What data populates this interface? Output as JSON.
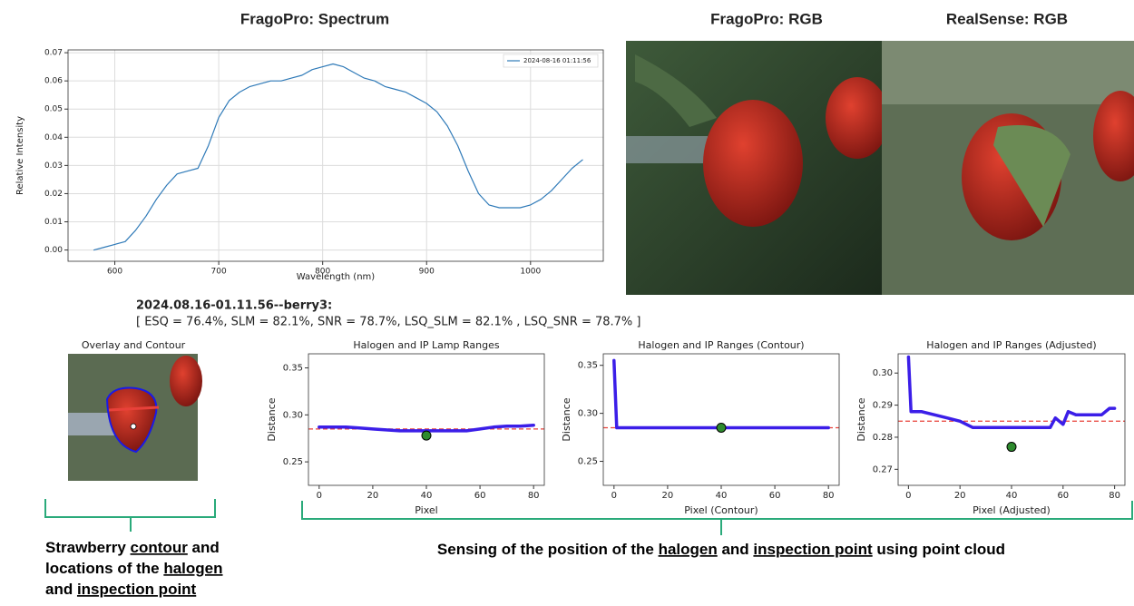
{
  "headers": [
    "FragoPro: Spectrum",
    "FragoPro: RGB",
    "RealSense: RGB"
  ],
  "record": {
    "id": "2024.08.16-01.11.56--berry3:",
    "metrics": "[ ESQ = 76.4%, SLM = 82.1%, SNR = 78.7%, LSQ_SLM = 82.1% , LSQ_SNR = 78.7% ]"
  },
  "overlay_title": "Overlay and Contour",
  "captions": {
    "left": [
      [
        "Strawberry ",
        "contour",
        " and"
      ],
      [
        "locations of the ",
        "halogen"
      ],
      [
        "and ",
        "inspection point"
      ]
    ],
    "right": [
      [
        "Sensing of the position of the ",
        "halogen",
        " and ",
        "inspection point",
        " using point cloud"
      ]
    ]
  },
  "chart_data": [
    {
      "type": "line",
      "xlabel": "Wavelength (nm)",
      "ylabel": "Relative Intensity",
      "xlim": [
        555,
        1070
      ],
      "ylim": [
        -0.004,
        0.071
      ],
      "xticks": [
        600,
        700,
        800,
        900,
        1000
      ],
      "yticks": [
        {
          "value": 0,
          "label": "0.00"
        },
        0.01,
        0.02,
        0.03,
        0.04,
        0.05,
        0.06,
        0.07
      ],
      "grid": true,
      "legend": "upper right",
      "series": [
        {
          "name": "2024-08-16 01:11:56",
          "color": "#2f7ab8",
          "x": [
            580,
            590,
            600,
            610,
            620,
            630,
            640,
            650,
            660,
            670,
            680,
            690,
            700,
            710,
            720,
            730,
            740,
            750,
            760,
            770,
            780,
            790,
            800,
            810,
            820,
            830,
            840,
            850,
            860,
            870,
            880,
            890,
            900,
            910,
            920,
            930,
            940,
            950,
            960,
            970,
            980,
            990,
            1000,
            1010,
            1020,
            1030,
            1040,
            1050
          ],
          "values": [
            0.0,
            0.001,
            0.002,
            0.003,
            0.007,
            0.012,
            0.018,
            0.023,
            0.027,
            0.028,
            0.029,
            0.037,
            0.047,
            0.053,
            0.056,
            0.058,
            0.059,
            0.06,
            0.06,
            0.061,
            0.062,
            0.064,
            0.065,
            0.066,
            0.065,
            0.063,
            0.061,
            0.06,
            0.058,
            0.057,
            0.056,
            0.054,
            0.052,
            0.049,
            0.044,
            0.037,
            0.028,
            0.02,
            0.016,
            0.015,
            0.015,
            0.015,
            0.016,
            0.018,
            0.021,
            0.025,
            0.029,
            0.032
          ]
        }
      ]
    },
    {
      "type": "line",
      "title": "Halogen and IP Lamp Ranges",
      "xlabel": "Pixel",
      "ylabel": "Distance",
      "xlim": [
        -4,
        84
      ],
      "ylim": [
        0.225,
        0.365
      ],
      "xticks": [
        0,
        20,
        40,
        60,
        80
      ],
      "yticks": [
        0.25,
        {
          "value": 0.3,
          "label": "0.30"
        },
        0.35
      ],
      "hline": {
        "value": 0.285,
        "color": "#e8413a"
      },
      "series": [
        {
          "color": "#3b1ee8",
          "x": [
            0,
            5,
            10,
            15,
            20,
            25,
            30,
            35,
            40,
            45,
            50,
            55,
            60,
            65,
            70,
            75,
            80
          ],
          "values": [
            0.287,
            0.287,
            0.287,
            0.286,
            0.285,
            0.284,
            0.283,
            0.283,
            0.283,
            0.283,
            0.283,
            0.283,
            0.285,
            0.287,
            0.288,
            0.288,
            0.289
          ]
        },
        {
          "color": "#2e8b2e",
          "marker": "point",
          "x": [
            40
          ],
          "values": [
            0.278
          ]
        }
      ]
    },
    {
      "type": "line",
      "title": "Halogen and IP Ranges (Contour)",
      "xlabel": "Pixel (Contour)",
      "ylabel": "Distance",
      "xlim": [
        -4,
        84
      ],
      "ylim": [
        0.225,
        0.362
      ],
      "xticks": [
        0,
        20,
        40,
        60,
        80
      ],
      "yticks": [
        0.25,
        {
          "value": 0.3,
          "label": "0.30"
        },
        0.35
      ],
      "hline": {
        "value": 0.285,
        "color": "#e8413a"
      },
      "series": [
        {
          "color": "#3b1ee8",
          "x": [
            0,
            1,
            10,
            20,
            30,
            40,
            50,
            60,
            70,
            80
          ],
          "values": [
            0.355,
            0.285,
            0.285,
            0.285,
            0.285,
            0.285,
            0.285,
            0.285,
            0.285,
            0.285
          ]
        },
        {
          "color": "#2e8b2e",
          "marker": "point",
          "x": [
            40
          ],
          "values": [
            0.285
          ]
        }
      ]
    },
    {
      "type": "line",
      "title": "Halogen and IP Ranges (Adjusted)",
      "xlabel": "Pixel (Adjusted)",
      "ylabel": "Distance",
      "xlim": [
        -4,
        84
      ],
      "ylim": [
        0.265,
        0.306
      ],
      "xticks": [
        0,
        20,
        40,
        60,
        80
      ],
      "yticks": [
        0.27,
        0.28,
        0.29,
        {
          "value": 0.3,
          "label": "0.30"
        }
      ],
      "hline": {
        "value": 0.285,
        "color": "#e8413a"
      },
      "series": [
        {
          "color": "#3b1ee8",
          "x": [
            0,
            1,
            5,
            10,
            15,
            20,
            25,
            30,
            35,
            40,
            45,
            50,
            55,
            57,
            60,
            62,
            65,
            70,
            75,
            78,
            80
          ],
          "values": [
            0.305,
            0.288,
            0.288,
            0.287,
            0.286,
            0.285,
            0.283,
            0.283,
            0.283,
            0.283,
            0.283,
            0.283,
            0.283,
            0.286,
            0.284,
            0.288,
            0.287,
            0.287,
            0.287,
            0.289,
            0.289
          ]
        },
        {
          "color": "#2e8b2e",
          "marker": "point",
          "x": [
            40
          ],
          "values": [
            0.277
          ]
        }
      ]
    }
  ]
}
